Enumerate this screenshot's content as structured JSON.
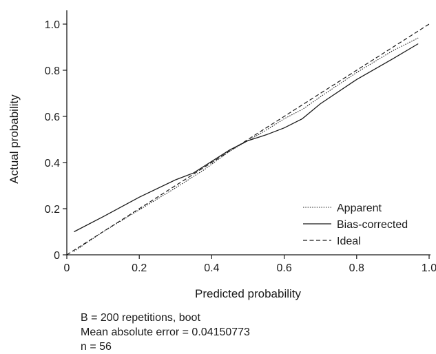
{
  "chart_data": {
    "type": "line",
    "title": "",
    "xlabel": "Predicted probability",
    "ylabel": "Actual probability",
    "xlim": [
      0,
      1.0
    ],
    "ylim": [
      0,
      1.0
    ],
    "xticks": [
      "0",
      "0.2",
      "0.4",
      "0.6",
      "0.8",
      "1.0"
    ],
    "yticks": [
      "0",
      "0.2",
      "0.4",
      "0.6",
      "0.8",
      "1.0"
    ],
    "grid": false,
    "legend_position": "bottom-right",
    "series": [
      {
        "name": "Apparent",
        "style": "dotted",
        "x": [
          0.02,
          0.1,
          0.2,
          0.3,
          0.38,
          0.45,
          0.5,
          0.55,
          0.6,
          0.65,
          0.7,
          0.8,
          0.9,
          0.97
        ],
        "y": [
          0.015,
          0.1,
          0.195,
          0.29,
          0.37,
          0.45,
          0.495,
          0.54,
          0.59,
          0.63,
          0.685,
          0.79,
          0.885,
          0.94
        ]
      },
      {
        "name": "Bias-corrected",
        "style": "solid",
        "x": [
          0.02,
          0.1,
          0.2,
          0.3,
          0.35,
          0.4,
          0.45,
          0.5,
          0.55,
          0.6,
          0.65,
          0.7,
          0.8,
          0.9,
          0.97
        ],
        "y": [
          0.1,
          0.165,
          0.25,
          0.325,
          0.355,
          0.405,
          0.455,
          0.495,
          0.52,
          0.55,
          0.59,
          0.655,
          0.76,
          0.85,
          0.915
        ]
      },
      {
        "name": "Ideal",
        "style": "dashed",
        "x": [
          0,
          1.0
        ],
        "y": [
          0,
          1.0
        ]
      }
    ]
  },
  "footer": {
    "line1": "B = 200 repetitions, boot",
    "line2": "Mean absolute error = 0.04150773",
    "line3": "n = 56"
  }
}
